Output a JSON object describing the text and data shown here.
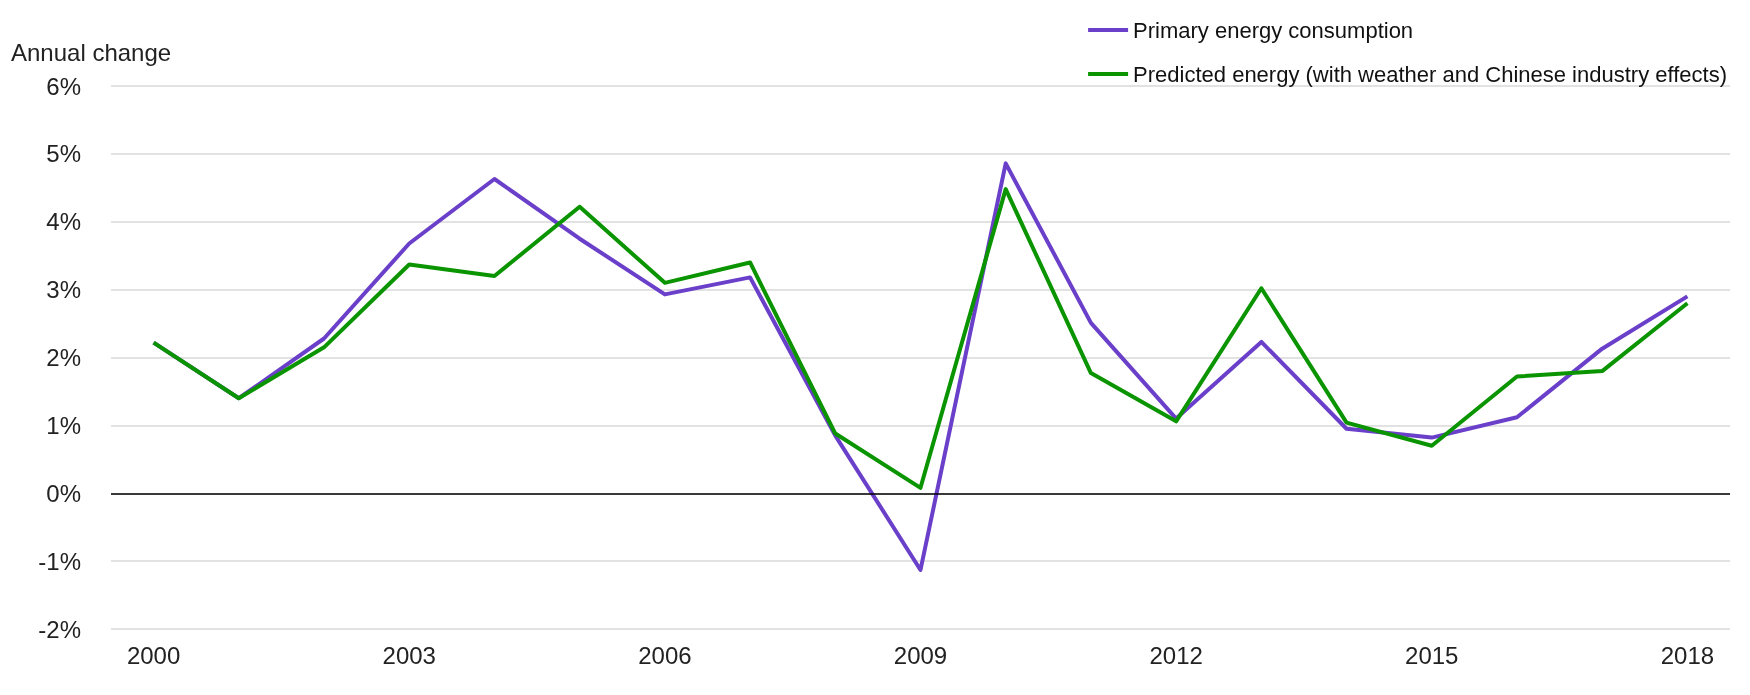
{
  "chart_data": {
    "type": "line",
    "ylabel": "Annual change",
    "categories": [
      "2000",
      null,
      null,
      "2003",
      null,
      null,
      "2006",
      null,
      null,
      "2009",
      null,
      null,
      "2012",
      null,
      null,
      "2015",
      null,
      null,
      "2018"
    ],
    "series": [
      {
        "name": "Primary energy consumption",
        "color": "#6a3fc9",
        "values": [
          2.22,
          1.4,
          2.28,
          3.68,
          4.63,
          3.75,
          2.93,
          3.18,
          0.85,
          -1.13,
          4.86,
          2.51,
          1.1,
          2.23,
          0.95,
          0.82,
          1.12,
          2.13,
          2.9
        ]
      },
      {
        "name": "Predicted energy (with weather and Chinese industry effects)",
        "color": "#0a9400",
        "values": [
          2.22,
          1.4,
          2.15,
          3.37,
          3.2,
          4.22,
          3.1,
          3.4,
          0.88,
          0.08,
          4.48,
          1.77,
          1.06,
          3.02,
          1.04,
          0.7,
          1.72,
          1.8,
          2.8
        ]
      }
    ],
    "ylim": [
      -2,
      6
    ],
    "yticks": [
      {
        "value": -2,
        "label": "-2%"
      },
      {
        "value": -1,
        "label": "-1%"
      },
      {
        "value": 0,
        "label": "0%"
      },
      {
        "value": 1,
        "label": "1%"
      },
      {
        "value": 2,
        "label": "2%"
      },
      {
        "value": 3,
        "label": "3%"
      },
      {
        "value": 4,
        "label": "4%"
      },
      {
        "value": 5,
        "label": "5%"
      },
      {
        "value": 6,
        "label": "6%"
      }
    ],
    "grid": "y",
    "legend": "top right",
    "marker": "none",
    "line_style": "solid"
  }
}
